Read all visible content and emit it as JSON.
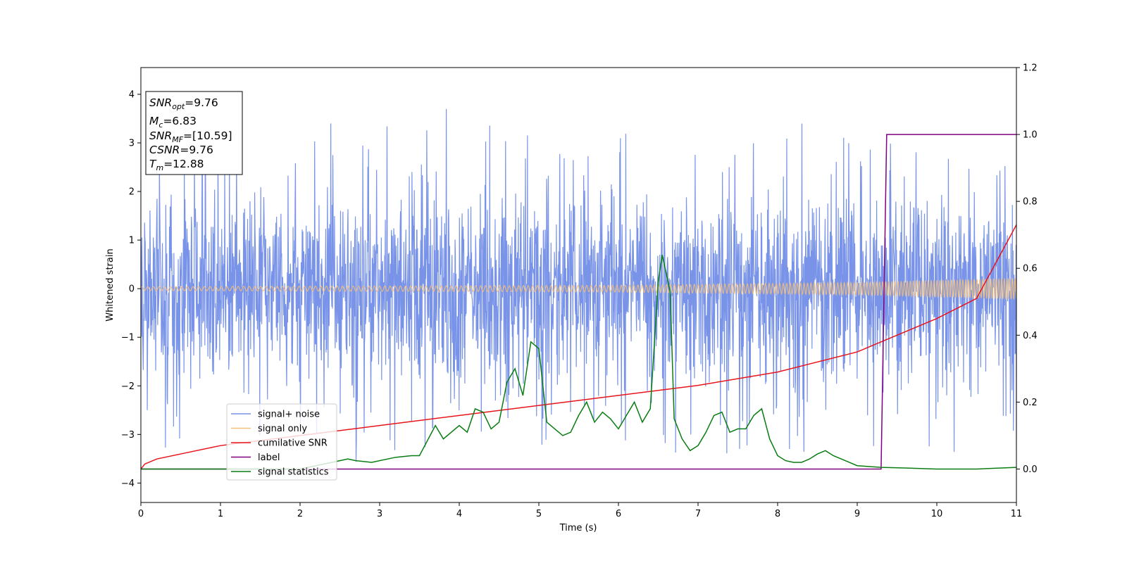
{
  "chart_data": {
    "type": "line",
    "xlabel": "Time (s)",
    "ylabel": "Whitened strain",
    "xlim": [
      0,
      11
    ],
    "ylim": [
      -4.4,
      4.55
    ],
    "ylim_right": [
      -0.1,
      1.2
    ],
    "x_ticks": [
      0,
      1,
      2,
      3,
      4,
      5,
      6,
      7,
      8,
      9,
      10,
      11
    ],
    "y_ticks": [
      -4,
      -3,
      -2,
      -1,
      0,
      1,
      2,
      3,
      4
    ],
    "y_tick_labels": [
      "−4",
      "−3",
      "−2",
      "−1",
      "0",
      "1",
      "2",
      "3",
      "4"
    ],
    "y2_ticks": [
      0.0,
      0.2,
      0.4,
      0.6,
      0.8,
      1.0,
      1.2
    ],
    "y2_tick_labels": [
      "0.0",
      "0.2",
      "0.4",
      "0.6",
      "0.8",
      "1.0",
      "1.2"
    ],
    "grid": false,
    "legend_position": "lower-left",
    "annotation": {
      "snr_opt_label": "SNR",
      "snr_opt_sub": "opt",
      "snr_opt_value": "=9.76",
      "mc_label": "M",
      "mc_sub": "c",
      "mc_value": "=6.83",
      "snr_mf_label": "SNR",
      "snr_mf_sub": "MF",
      "snr_mf_value": "=[10.59]",
      "csnr_label": "CSNR",
      "csnr_value": "=9.76",
      "tm_label": "T",
      "tm_sub": "m",
      "tm_value": "=12.88"
    },
    "series": [
      {
        "name": "signal+ noise",
        "color": "#7893e8",
        "axis": "left",
        "kind": "noise",
        "typical_envelope": [
          -2.0,
          2.0
        ],
        "peak_max": 4.18,
        "peak_min": -3.98
      },
      {
        "name": "signal only",
        "color": "#f5c078",
        "axis": "left",
        "kind": "chirp",
        "amplitude": [
          [
            0,
            0.04
          ],
          [
            6,
            0.07
          ],
          [
            9,
            0.13
          ],
          [
            11,
            0.22
          ]
        ]
      },
      {
        "name": "cumilative SNR",
        "color": "#e8141c",
        "axis": "right",
        "x": [
          0,
          0.05,
          0.2,
          0.5,
          1,
          1.5,
          2,
          3,
          4,
          5,
          6,
          7,
          8,
          9,
          9.5,
          10,
          10.5,
          11
        ],
        "y": [
          0.0,
          0.015,
          0.03,
          0.045,
          0.07,
          0.085,
          0.1,
          0.13,
          0.16,
          0.19,
          0.22,
          0.25,
          0.29,
          0.35,
          0.4,
          0.45,
          0.51,
          0.73
        ]
      },
      {
        "name": "label",
        "color": "#800080",
        "axis": "right",
        "x": [
          0,
          9.3,
          9.37,
          11
        ],
        "y": [
          0,
          0,
          1,
          1
        ]
      },
      {
        "name": "signal statistics",
        "color": "#0a7d12",
        "axis": "right",
        "x": [
          0,
          1,
          2,
          2.5,
          2.6,
          2.7,
          2.9,
          3.2,
          3.4,
          3.5,
          3.7,
          3.8,
          4.0,
          4.1,
          4.2,
          4.3,
          4.4,
          4.5,
          4.6,
          4.7,
          4.8,
          4.9,
          5.0,
          5.1,
          5.2,
          5.3,
          5.4,
          5.5,
          5.6,
          5.7,
          5.8,
          5.9,
          6.0,
          6.1,
          6.2,
          6.3,
          6.4,
          6.5,
          6.55,
          6.65,
          6.7,
          6.8,
          6.9,
          7.0,
          7.1,
          7.2,
          7.3,
          7.4,
          7.5,
          7.6,
          7.7,
          7.8,
          7.9,
          8.0,
          8.1,
          8.2,
          8.3,
          8.4,
          8.5,
          8.6,
          8.7,
          8.8,
          8.9,
          9.0,
          9.3,
          9.6,
          10.0,
          10.5,
          11.0
        ],
        "y": [
          0.0,
          0.0,
          0.0,
          0.025,
          0.03,
          0.025,
          0.02,
          0.035,
          0.04,
          0.04,
          0.13,
          0.09,
          0.13,
          0.11,
          0.18,
          0.17,
          0.12,
          0.14,
          0.26,
          0.3,
          0.22,
          0.38,
          0.36,
          0.14,
          0.12,
          0.1,
          0.11,
          0.16,
          0.2,
          0.14,
          0.17,
          0.15,
          0.12,
          0.16,
          0.2,
          0.14,
          0.18,
          0.56,
          0.64,
          0.53,
          0.15,
          0.09,
          0.055,
          0.07,
          0.11,
          0.16,
          0.17,
          0.11,
          0.12,
          0.12,
          0.16,
          0.18,
          0.09,
          0.04,
          0.025,
          0.02,
          0.02,
          0.03,
          0.045,
          0.055,
          0.04,
          0.03,
          0.02,
          0.01,
          0.005,
          0.003,
          0.0,
          0.0,
          0.005
        ]
      }
    ]
  }
}
